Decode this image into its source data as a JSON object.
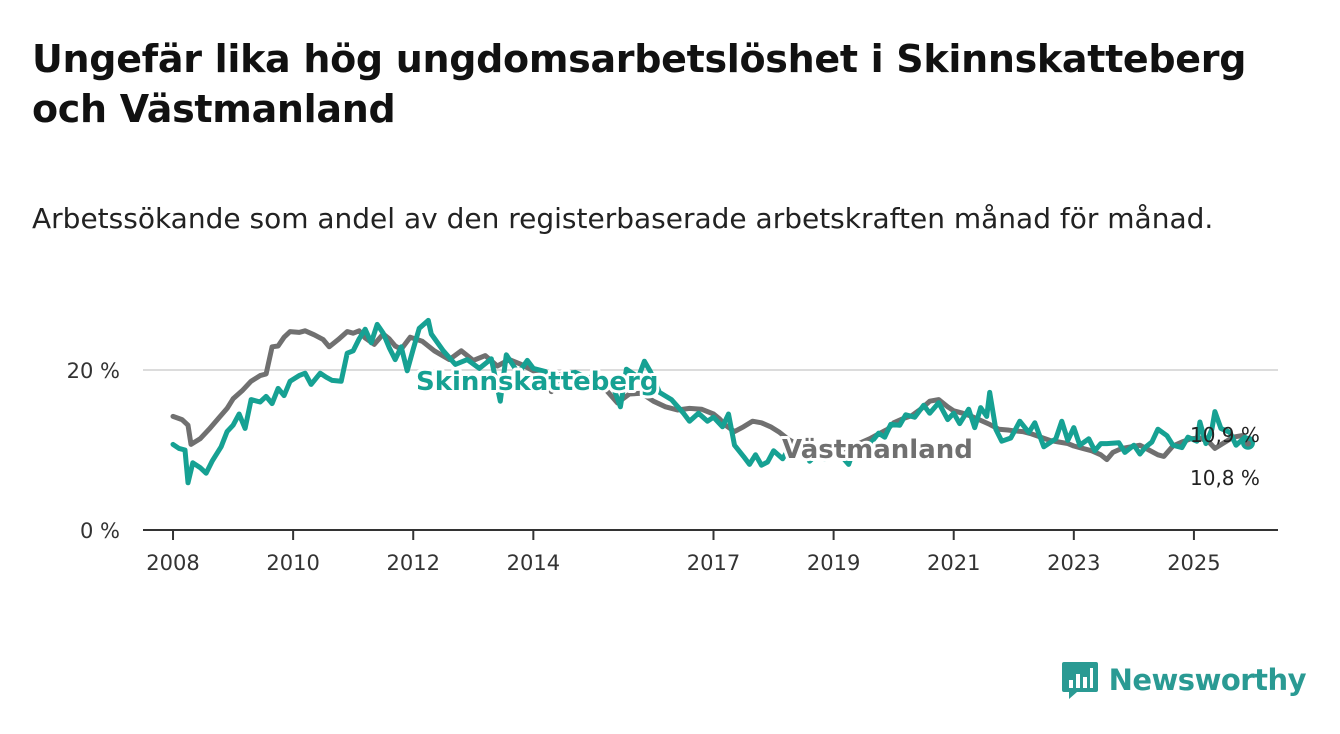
{
  "title": "Ungefär lika hög ungdomsarbetslöshet i Skinnskatteberg och Västmanland",
  "subtitle": "Arbetssökande som andel av den registerbaserade arbetskraften månad för månad.",
  "colors": {
    "skinnskatteberg": "#16a193",
    "vastmanland": "#707070",
    "axis": "#333333",
    "grid": "#dcdcdc",
    "brand": "#2a9a93"
  },
  "brand": {
    "name": "Newsworthy",
    "icon": "bar-chart-icon"
  },
  "chart_data": {
    "type": "line",
    "title": "Ungefär lika hög ungdomsarbetslöshet i Skinnskatteberg och Västmanland",
    "xlabel": "",
    "ylabel": "",
    "xlim": [
      2007.5,
      2026.4
    ],
    "ylim": [
      0,
      25
    ],
    "x_ticks": [
      2008,
      2010,
      2012,
      2014,
      2017,
      2019,
      2021,
      2023,
      2025
    ],
    "y_ticks": [
      {
        "value": 0,
        "label": "0 %"
      },
      {
        "value": 20,
        "label": "20 %"
      }
    ],
    "grid": true,
    "series": [
      {
        "name": "Västmanland",
        "label": "Västmanland",
        "end_label": "10,8 %",
        "points": [
          [
            2008.0,
            14.2
          ],
          [
            2008.15,
            13.8
          ],
          [
            2008.25,
            13.1
          ],
          [
            2008.3,
            10.7
          ],
          [
            2008.45,
            11.4
          ],
          [
            2008.6,
            12.6
          ],
          [
            2008.75,
            13.9
          ],
          [
            2008.9,
            15.2
          ],
          [
            2009.0,
            16.4
          ],
          [
            2009.15,
            17.4
          ],
          [
            2009.3,
            18.6
          ],
          [
            2009.45,
            19.3
          ],
          [
            2009.55,
            19.5
          ],
          [
            2009.65,
            22.9
          ],
          [
            2009.75,
            23.0
          ],
          [
            2009.85,
            24.1
          ],
          [
            2009.95,
            24.8
          ],
          [
            2010.1,
            24.7
          ],
          [
            2010.2,
            24.9
          ],
          [
            2010.35,
            24.4
          ],
          [
            2010.5,
            23.8
          ],
          [
            2010.6,
            22.9
          ],
          [
            2010.75,
            23.8
          ],
          [
            2010.9,
            24.8
          ],
          [
            2011.0,
            24.6
          ],
          [
            2011.1,
            24.9
          ],
          [
            2011.2,
            24.0
          ],
          [
            2011.35,
            23.2
          ],
          [
            2011.5,
            24.5
          ],
          [
            2011.6,
            23.9
          ],
          [
            2011.7,
            23.0
          ],
          [
            2011.8,
            22.6
          ],
          [
            2011.95,
            24.1
          ],
          [
            2012.15,
            23.6
          ],
          [
            2012.35,
            22.4
          ],
          [
            2012.6,
            21.3
          ],
          [
            2012.8,
            22.4
          ],
          [
            2013.0,
            21.2
          ],
          [
            2013.2,
            21.8
          ],
          [
            2013.4,
            20.5
          ],
          [
            2013.6,
            21.3
          ],
          [
            2013.8,
            20.7
          ],
          [
            2014.0,
            19.9
          ],
          [
            2014.2,
            19.3
          ],
          [
            2014.3,
            17.3
          ],
          [
            2014.45,
            19.4
          ],
          [
            2014.6,
            19.3
          ],
          [
            2014.8,
            18.8
          ],
          [
            2015.0,
            18.3
          ],
          [
            2015.2,
            17.6
          ],
          [
            2015.4,
            15.9
          ],
          [
            2015.6,
            17.0
          ],
          [
            2015.8,
            17.1
          ],
          [
            2016.0,
            16.1
          ],
          [
            2016.2,
            15.4
          ],
          [
            2016.4,
            15.0
          ],
          [
            2016.6,
            15.2
          ],
          [
            2016.8,
            15.1
          ],
          [
            2017.0,
            14.5
          ],
          [
            2017.1,
            13.9
          ],
          [
            2017.2,
            13.1
          ],
          [
            2017.35,
            12.3
          ],
          [
            2017.5,
            12.9
          ],
          [
            2017.65,
            13.6
          ],
          [
            2017.8,
            13.4
          ],
          [
            2017.95,
            12.9
          ],
          [
            2018.1,
            12.2
          ],
          [
            2018.25,
            11.3
          ],
          [
            2018.4,
            10.7
          ],
          [
            2018.55,
            10.5
          ],
          [
            2018.7,
            10.2
          ],
          [
            2018.85,
            10.3
          ],
          [
            2019.0,
            10.0
          ],
          [
            2019.15,
            10.1
          ],
          [
            2019.3,
            10.4
          ],
          [
            2019.45,
            10.9
          ],
          [
            2019.6,
            11.4
          ],
          [
            2019.75,
            12.0
          ],
          [
            2019.9,
            12.6
          ],
          [
            2020.0,
            13.4
          ],
          [
            2020.15,
            13.9
          ],
          [
            2020.3,
            14.3
          ],
          [
            2020.45,
            15.1
          ],
          [
            2020.6,
            16.1
          ],
          [
            2020.75,
            16.3
          ],
          [
            2020.9,
            15.4
          ],
          [
            2021.0,
            14.9
          ],
          [
            2021.15,
            14.6
          ],
          [
            2021.3,
            14.2
          ],
          [
            2021.45,
            13.7
          ],
          [
            2021.6,
            13.2
          ],
          [
            2021.75,
            12.6
          ],
          [
            2021.9,
            12.5
          ],
          [
            2022.0,
            12.4
          ],
          [
            2022.15,
            12.3
          ],
          [
            2022.3,
            12.0
          ],
          [
            2022.45,
            11.6
          ],
          [
            2022.6,
            11.2
          ],
          [
            2022.75,
            11.0
          ],
          [
            2022.9,
            10.8
          ],
          [
            2023.0,
            10.5
          ],
          [
            2023.15,
            10.2
          ],
          [
            2023.3,
            9.9
          ],
          [
            2023.45,
            9.4
          ],
          [
            2023.55,
            8.8
          ],
          [
            2023.65,
            9.7
          ],
          [
            2023.8,
            10.2
          ],
          [
            2023.95,
            10.4
          ],
          [
            2024.1,
            10.6
          ],
          [
            2024.25,
            10.0
          ],
          [
            2024.4,
            9.4
          ],
          [
            2024.5,
            9.2
          ],
          [
            2024.65,
            10.5
          ],
          [
            2024.8,
            11.0
          ],
          [
            2024.95,
            11.4
          ],
          [
            2025.1,
            11.5
          ],
          [
            2025.25,
            11.0
          ],
          [
            2025.35,
            10.2
          ],
          [
            2025.5,
            10.9
          ],
          [
            2025.65,
            11.6
          ],
          [
            2025.8,
            11.8
          ],
          [
            2025.9,
            10.8
          ]
        ]
      },
      {
        "name": "Skinnskatteberg",
        "label": "Skinnskatteberg",
        "end_label": "10,9 %",
        "points": [
          [
            2008.0,
            10.7
          ],
          [
            2008.1,
            10.2
          ],
          [
            2008.2,
            10.0
          ],
          [
            2008.25,
            5.9
          ],
          [
            2008.33,
            8.4
          ],
          [
            2008.45,
            7.8
          ],
          [
            2008.55,
            7.1
          ],
          [
            2008.65,
            8.6
          ],
          [
            2008.8,
            10.4
          ],
          [
            2008.9,
            12.3
          ],
          [
            2009.0,
            13.1
          ],
          [
            2009.1,
            14.5
          ],
          [
            2009.2,
            12.7
          ],
          [
            2009.3,
            16.3
          ],
          [
            2009.45,
            16.0
          ],
          [
            2009.55,
            16.7
          ],
          [
            2009.65,
            15.8
          ],
          [
            2009.75,
            17.7
          ],
          [
            2009.85,
            16.8
          ],
          [
            2009.95,
            18.6
          ],
          [
            2010.1,
            19.3
          ],
          [
            2010.2,
            19.6
          ],
          [
            2010.3,
            18.2
          ],
          [
            2010.45,
            19.6
          ],
          [
            2010.55,
            19.1
          ],
          [
            2010.65,
            18.7
          ],
          [
            2010.8,
            18.6
          ],
          [
            2010.9,
            22.1
          ],
          [
            2011.0,
            22.4
          ],
          [
            2011.1,
            23.9
          ],
          [
            2011.2,
            25.1
          ],
          [
            2011.3,
            23.4
          ],
          [
            2011.4,
            25.7
          ],
          [
            2011.5,
            24.6
          ],
          [
            2011.6,
            22.8
          ],
          [
            2011.7,
            21.3
          ],
          [
            2011.8,
            22.9
          ],
          [
            2011.9,
            19.9
          ],
          [
            2012.0,
            22.6
          ],
          [
            2012.1,
            25.2
          ],
          [
            2012.25,
            26.2
          ],
          [
            2012.3,
            24.5
          ],
          [
            2012.5,
            22.4
          ],
          [
            2012.7,
            20.7
          ],
          [
            2012.9,
            21.3
          ],
          [
            2013.1,
            20.2
          ],
          [
            2013.3,
            21.4
          ],
          [
            2013.45,
            16.1
          ],
          [
            2013.55,
            21.9
          ],
          [
            2013.75,
            19.6
          ],
          [
            2013.9,
            21.2
          ],
          [
            2014.0,
            20.2
          ],
          [
            2014.2,
            19.8
          ],
          [
            2014.3,
            17.8
          ],
          [
            2014.5,
            19.5
          ],
          [
            2014.7,
            19.7
          ],
          [
            2014.9,
            19.0
          ],
          [
            2015.1,
            19.3
          ],
          [
            2015.3,
            18.5
          ],
          [
            2015.45,
            15.4
          ],
          [
            2015.55,
            20.1
          ],
          [
            2015.75,
            19.1
          ],
          [
            2015.85,
            21.1
          ],
          [
            2015.95,
            19.8
          ],
          [
            2016.1,
            17.2
          ],
          [
            2016.3,
            16.3
          ],
          [
            2016.5,
            14.6
          ],
          [
            2016.6,
            13.6
          ],
          [
            2016.75,
            14.6
          ],
          [
            2016.9,
            13.6
          ],
          [
            2017.0,
            14.1
          ],
          [
            2017.15,
            12.9
          ],
          [
            2017.25,
            14.5
          ],
          [
            2017.35,
            10.6
          ],
          [
            2017.5,
            9.2
          ],
          [
            2017.6,
            8.2
          ],
          [
            2017.7,
            9.4
          ],
          [
            2017.8,
            8.1
          ],
          [
            2017.9,
            8.5
          ],
          [
            2018.0,
            9.9
          ],
          [
            2018.15,
            8.9
          ],
          [
            2018.25,
            10.1
          ],
          [
            2018.35,
            9.7
          ],
          [
            2018.5,
            10.3
          ],
          [
            2018.6,
            8.6
          ],
          [
            2018.75,
            9.7
          ],
          [
            2018.85,
            8.9
          ],
          [
            2019.0,
            10.1
          ],
          [
            2019.1,
            9.5
          ],
          [
            2019.25,
            8.2
          ],
          [
            2019.35,
            10.3
          ],
          [
            2019.5,
            9.9
          ],
          [
            2019.6,
            10.7
          ],
          [
            2019.75,
            12.1
          ],
          [
            2019.85,
            11.6
          ],
          [
            2019.95,
            13.2
          ],
          [
            2020.1,
            13.1
          ],
          [
            2020.2,
            14.4
          ],
          [
            2020.35,
            14.1
          ],
          [
            2020.5,
            15.6
          ],
          [
            2020.6,
            14.6
          ],
          [
            2020.75,
            15.9
          ],
          [
            2020.9,
            13.8
          ],
          [
            2021.0,
            14.6
          ],
          [
            2021.1,
            13.3
          ],
          [
            2021.25,
            15.1
          ],
          [
            2021.35,
            12.8
          ],
          [
            2021.45,
            15.3
          ],
          [
            2021.55,
            14.2
          ],
          [
            2021.6,
            17.2
          ],
          [
            2021.7,
            12.6
          ],
          [
            2021.8,
            11.1
          ],
          [
            2021.95,
            11.5
          ],
          [
            2022.1,
            13.6
          ],
          [
            2022.25,
            12.2
          ],
          [
            2022.35,
            13.4
          ],
          [
            2022.5,
            10.4
          ],
          [
            2022.6,
            10.9
          ],
          [
            2022.7,
            11.4
          ],
          [
            2022.8,
            13.6
          ],
          [
            2022.9,
            11.2
          ],
          [
            2023.0,
            12.8
          ],
          [
            2023.1,
            10.6
          ],
          [
            2023.25,
            11.4
          ],
          [
            2023.35,
            9.9
          ],
          [
            2023.45,
            10.8
          ],
          [
            2023.55,
            10.8
          ],
          [
            2023.75,
            10.9
          ],
          [
            2023.85,
            9.7
          ],
          [
            2024.0,
            10.6
          ],
          [
            2024.1,
            9.5
          ],
          [
            2024.2,
            10.4
          ],
          [
            2024.3,
            11.0
          ],
          [
            2024.4,
            12.6
          ],
          [
            2024.55,
            11.8
          ],
          [
            2024.65,
            10.6
          ],
          [
            2024.8,
            10.3
          ],
          [
            2024.9,
            11.6
          ],
          [
            2025.05,
            11.1
          ],
          [
            2025.1,
            13.5
          ],
          [
            2025.2,
            10.8
          ],
          [
            2025.3,
            12.6
          ],
          [
            2025.35,
            14.8
          ],
          [
            2025.45,
            12.7
          ],
          [
            2025.6,
            12.2
          ],
          [
            2025.7,
            10.6
          ],
          [
            2025.85,
            11.6
          ],
          [
            2025.9,
            10.9
          ]
        ]
      }
    ]
  }
}
